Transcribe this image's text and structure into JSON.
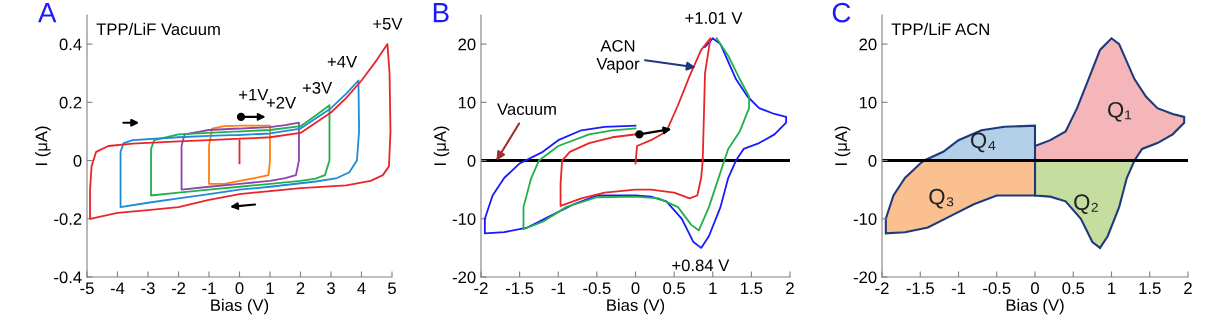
{
  "chart_data": [
    {
      "type": "line",
      "title": "A",
      "subtitle": "TPP/LiF Vacuum",
      "xlabel": "Bias (V)",
      "ylabel": "I (μA)",
      "xlim": [
        -5,
        5
      ],
      "ylim": [
        -0.4,
        0.5
      ],
      "xticks": [
        -5,
        -4,
        -3,
        -2,
        -1,
        0,
        1,
        2,
        3,
        4,
        5
      ],
      "yticks": [
        -0.4,
        -0.2,
        0,
        0.2,
        0.4
      ],
      "series": [
        {
          "color": "#ff7f0e",
          "x": [
            0,
            0.5,
            1,
            1,
            0.95,
            0.5,
            0,
            -0.5,
            -1,
            -1,
            -0.9,
            -0.5,
            -0.05
          ],
          "values": [
            0.12,
            0.12,
            0.12,
            0.0,
            -0.05,
            -0.06,
            -0.07,
            -0.08,
            -0.08,
            0.05,
            0.11,
            0.118,
            0.12
          ]
        },
        {
          "color": "#8e44ad",
          "x": [
            0,
            1,
            1.5,
            1.95,
            1.95,
            1.85,
            1.5,
            1,
            0,
            -1,
            -1.9,
            -1.9,
            -1.8,
            -1,
            -0.05
          ],
          "values": [
            0.11,
            0.115,
            0.122,
            0.13,
            0.0,
            -0.05,
            -0.06,
            -0.07,
            -0.08,
            -0.09,
            -0.1,
            0.05,
            0.09,
            0.105,
            0.11
          ]
        },
        {
          "color": "#22b04b",
          "x": [
            0,
            1,
            2,
            2.5,
            2.95,
            2.95,
            2.8,
            2.5,
            2,
            1,
            0,
            -1,
            -2,
            -2.9,
            -2.9,
            -2.8,
            -2,
            -1,
            -0.05
          ],
          "values": [
            0.1,
            0.105,
            0.118,
            0.155,
            0.19,
            0.0,
            -0.05,
            -0.062,
            -0.07,
            -0.08,
            -0.09,
            -0.1,
            -0.11,
            -0.12,
            0.04,
            0.07,
            0.09,
            0.095,
            0.1
          ]
        },
        {
          "color": "#1f8ad6",
          "x": [
            0,
            1,
            2,
            3,
            3.5,
            3.9,
            3.92,
            3.85,
            3.6,
            3.2,
            2.5,
            1,
            0,
            -1,
            -2,
            -3,
            -3.9,
            -3.9,
            -3.8,
            -3.5,
            -2,
            -1,
            -0.05
          ],
          "values": [
            0.088,
            0.093,
            0.11,
            0.18,
            0.23,
            0.275,
            0.1,
            0.0,
            -0.04,
            -0.06,
            -0.072,
            -0.09,
            -0.1,
            -0.115,
            -0.13,
            -0.145,
            -0.16,
            0.03,
            0.06,
            0.07,
            0.08,
            0.085,
            0.088
          ]
        },
        {
          "color": "#e8262a",
          "x": [
            0,
            0,
            0.5,
            1,
            2,
            3,
            3.5,
            4,
            4.5,
            4.85,
            4.92,
            4.95,
            4.9,
            4.7,
            4.3,
            3.5,
            2,
            1,
            0,
            -1,
            -2,
            -3,
            -4,
            -4.9,
            -4.9,
            -4.85,
            -4.7,
            -4.3,
            -3.5,
            -2,
            -1,
            0
          ],
          "values": [
            -0.01,
            0.075,
            0.077,
            0.08,
            0.095,
            0.165,
            0.215,
            0.275,
            0.345,
            0.4,
            0.3,
            0.1,
            -0.02,
            -0.05,
            -0.07,
            -0.085,
            -0.095,
            -0.105,
            -0.115,
            -0.135,
            -0.16,
            -0.17,
            -0.18,
            -0.2,
            -0.1,
            -0.02,
            0.03,
            0.05,
            0.058,
            0.066,
            0.07,
            0.075
          ]
        }
      ],
      "annotations": [
        {
          "text": "+1V",
          "x": 1,
          "y": 0.09
        },
        {
          "text": "+2V",
          "x": 2,
          "y": 0.11
        },
        {
          "text": "+3V",
          "x": 3,
          "y": 0.18
        },
        {
          "text": "+4V",
          "x": 4,
          "y": 0.27
        },
        {
          "text": "+5V",
          "x": 4.85,
          "y": 0.4
        }
      ]
    },
    {
      "type": "line",
      "title": "B",
      "xlabel": "Bias (V)",
      "ylabel": "I (μA)",
      "xlim": [
        -2,
        2
      ],
      "ylim": [
        -20,
        25
      ],
      "xticks": [
        -2,
        -1.5,
        -1,
        -0.5,
        0,
        0.5,
        1,
        1.5,
        2
      ],
      "yticks": [
        -20,
        -10,
        0,
        10,
        20
      ],
      "ref_lines": [
        {
          "axis": "y",
          "value": 0,
          "color": "#000000"
        }
      ],
      "series": [
        {
          "color": "#1a1aff",
          "x": [
            0.9,
            1.0,
            1.1,
            1.3,
            1.45,
            1.6,
            1.8,
            1.95,
            1.95,
            1.8,
            1.6,
            1.4,
            1.3,
            1.2,
            1.1,
            0.95,
            0.85,
            0.75,
            0.6,
            0.4,
            0.2,
            0,
            -0.5,
            -0.8,
            -1.1,
            -1.4,
            -1.7,
            -1.95,
            -1.95,
            -1.85,
            -1.7,
            -1.5,
            -1.2,
            -1.0,
            -0.7,
            -0.4,
            0
          ],
          "values": [
            19.5,
            21,
            20,
            14,
            11,
            9,
            8,
            7.5,
            6.5,
            4.5,
            3,
            2,
            0,
            -3,
            -8,
            -13,
            -15,
            -14,
            -10,
            -7,
            -6.2,
            -6,
            -6,
            -7.5,
            -9.5,
            -11.5,
            -12.3,
            -12.5,
            -10,
            -6,
            -3,
            -0.5,
            1.5,
            3.5,
            5.2,
            5.8,
            6
          ]
        },
        {
          "color": "#22b04b",
          "x": [
            1.05,
            1.2,
            1.35,
            1.47,
            1.47,
            1.35,
            1.2,
            1.15,
            1.05,
            0.95,
            0.82,
            0.72,
            0.55,
            0.3,
            0,
            -0.5,
            -0.9,
            -1.2,
            -1.45,
            -1.45,
            -1.35,
            -1.25,
            -1.0,
            -0.6,
            -0.3,
            0
          ],
          "values": [
            21,
            18,
            14,
            11,
            9,
            5,
            2,
            0,
            -4,
            -8,
            -12,
            -11,
            -8,
            -6.5,
            -6.2,
            -6.3,
            -8,
            -10.5,
            -11.8,
            -8,
            -3,
            0,
            2.5,
            4.5,
            5.2,
            5.5
          ]
        },
        {
          "color": "#e8262a",
          "x": [
            0,
            0.02,
            0.2,
            0.4,
            0.55,
            0.7,
            0.85,
            0.97,
            0.9,
            0.88,
            0.87,
            0.85,
            0.8,
            0.7,
            0.5,
            0.2,
            0,
            -0.4,
            -0.7,
            -0.97,
            -0.97,
            -0.95,
            -0.85,
            -0.6,
            -0.3,
            0
          ],
          "values": [
            -0.5,
            2.5,
            3.5,
            5,
            9.5,
            14.5,
            19,
            21,
            15,
            5,
            0,
            -3,
            -6,
            -6.5,
            -5.5,
            -5,
            -5,
            -5.5,
            -6.5,
            -7.8,
            -4,
            0,
            1.5,
            3,
            4,
            4.5
          ]
        }
      ],
      "annotations": [
        {
          "text": "ACN\nVapor",
          "x": 0.78,
          "y": 16
        },
        {
          "text": "Vacuum",
          "x": -1.8,
          "y": 0
        },
        {
          "text": "+1.01 V",
          "x": 1.01,
          "y": 21
        },
        {
          "text": "+0.84 V",
          "x": 0.84,
          "y": -15
        }
      ]
    },
    {
      "type": "area",
      "title": "C",
      "subtitle": "TPP/LiF ACN",
      "xlabel": "Bias (V)",
      "ylabel": "I (μA)",
      "xlim": [
        -2,
        2
      ],
      "ylim": [
        -20,
        25
      ],
      "xticks": [
        -2,
        -1.5,
        -1,
        -0.5,
        0,
        0.5,
        1,
        1.5,
        2
      ],
      "yticks": [
        -20,
        -10,
        0,
        10,
        20
      ],
      "ref_lines": [
        {
          "axis": "y",
          "value": 0,
          "color": "#000000"
        }
      ],
      "series": [
        {
          "name": "Q₁",
          "color": "#f4b6b8",
          "x": [
            0,
            0,
            0.2,
            0.4,
            0.55,
            0.7,
            0.85,
            1.0,
            1.1,
            1.3,
            1.45,
            1.6,
            1.8,
            1.95,
            1.95,
            1.8,
            1.6,
            1.4,
            1.3
          ],
          "values": [
            0,
            2.5,
            3.5,
            5,
            9,
            14,
            19,
            21,
            20,
            14,
            11,
            9,
            8,
            7.5,
            6.5,
            4.5,
            3,
            2,
            0
          ]
        },
        {
          "name": "Q₂",
          "color": "#c5dea0",
          "x": [
            1.3,
            1.2,
            1.1,
            0.95,
            0.85,
            0.75,
            0.6,
            0.4,
            0.2,
            0,
            0
          ],
          "values": [
            0,
            -3,
            -8,
            -13,
            -15,
            -14,
            -10,
            -7,
            -6.2,
            -6,
            0
          ]
        },
        {
          "name": "Q₃",
          "color": "#fac090",
          "x": [
            0,
            0,
            -0.5,
            -0.8,
            -1.1,
            -1.4,
            -1.7,
            -1.95,
            -1.95,
            -1.85,
            -1.7,
            -1.5,
            -1.45
          ],
          "values": [
            0,
            -6,
            -6,
            -7.5,
            -9.5,
            -11.5,
            -12.3,
            -12.5,
            -10,
            -6,
            -3,
            -0.5,
            0
          ]
        },
        {
          "name": "Q₄",
          "color": "#b4cfe8",
          "x": [
            -1.45,
            -1.2,
            -1.0,
            -0.7,
            -0.4,
            0,
            0
          ],
          "values": [
            0,
            1.5,
            3.5,
            5.2,
            5.8,
            6,
            0
          ]
        }
      ]
    }
  ]
}
